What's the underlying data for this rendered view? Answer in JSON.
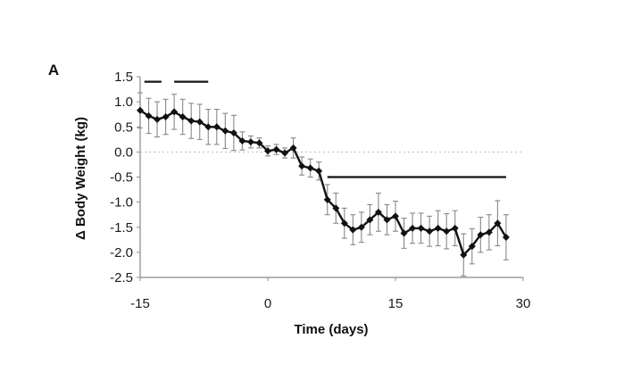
{
  "chart_data": {
    "type": "line",
    "panel_label": "A",
    "title": "",
    "xlabel": "Time (days)",
    "ylabel": "Δ Body Weight (kg)",
    "xlim": [
      -15,
      30
    ],
    "ylim": [
      -2.5,
      1.5
    ],
    "x_ticks": [
      "-15",
      "0",
      "15",
      "30"
    ],
    "y_ticks": [
      "1.5",
      "1.0",
      "0.5",
      "0.0",
      "-0.5",
      "-1.0",
      "-1.5",
      "-2.0",
      "-2.5"
    ],
    "x_tick_values": [
      -15,
      0,
      15,
      30
    ],
    "y_tick_values": [
      1.5,
      1.0,
      0.5,
      0.0,
      -0.5,
      -1.0,
      -1.5,
      -2.0,
      -2.5
    ],
    "reference_line": {
      "y": 0,
      "style": "dotted"
    },
    "grid": false,
    "legend": "none",
    "period_bars": [
      {
        "y": 1.4,
        "x_start": -14.5,
        "x_end": -12.5
      },
      {
        "y": 1.4,
        "x_start": -11,
        "x_end": -7
      },
      {
        "y": -0.5,
        "x_start": 7,
        "x_end": 28
      }
    ],
    "series": [
      {
        "x": [
          -15,
          -14,
          -13,
          -12,
          -11,
          -10,
          -9,
          -8,
          -7,
          -6,
          -5,
          -4,
          -3,
          -2,
          -1,
          0,
          1,
          2,
          3,
          4,
          5,
          6,
          7,
          8,
          9,
          10,
          11,
          12,
          13,
          14,
          15,
          16,
          17,
          18,
          19,
          20,
          21,
          22,
          23,
          24,
          25,
          26,
          27,
          28
        ],
        "y": [
          0.83,
          0.72,
          0.65,
          0.7,
          0.8,
          0.7,
          0.62,
          0.6,
          0.5,
          0.5,
          0.42,
          0.38,
          0.22,
          0.2,
          0.18,
          0.02,
          0.05,
          -0.02,
          0.08,
          -0.28,
          -0.32,
          -0.38,
          -0.95,
          -1.12,
          -1.42,
          -1.55,
          -1.5,
          -1.35,
          -1.2,
          -1.35,
          -1.28,
          -1.62,
          -1.52,
          -1.52,
          -1.58,
          -1.52,
          -1.58,
          -1.52,
          -2.05,
          -1.88,
          -1.65,
          -1.6,
          -1.42,
          -1.7
        ],
        "err": [
          0.35,
          0.35,
          0.35,
          0.35,
          0.35,
          0.35,
          0.35,
          0.35,
          0.35,
          0.35,
          0.35,
          0.35,
          0.18,
          0.12,
          0.1,
          0.1,
          0.1,
          0.1,
          0.2,
          0.18,
          0.18,
          0.18,
          0.3,
          0.3,
          0.3,
          0.3,
          0.3,
          0.3,
          0.38,
          0.3,
          0.3,
          0.3,
          0.3,
          0.3,
          0.3,
          0.35,
          0.35,
          0.35,
          0.42,
          0.35,
          0.35,
          0.35,
          0.45,
          0.45
        ]
      }
    ],
    "colors": {
      "line": "#111111",
      "marker": "#111111",
      "error_bar": "#888888",
      "axis": "#888888",
      "reference_line": "#bbbbbb",
      "period_bar": "#111111"
    }
  }
}
